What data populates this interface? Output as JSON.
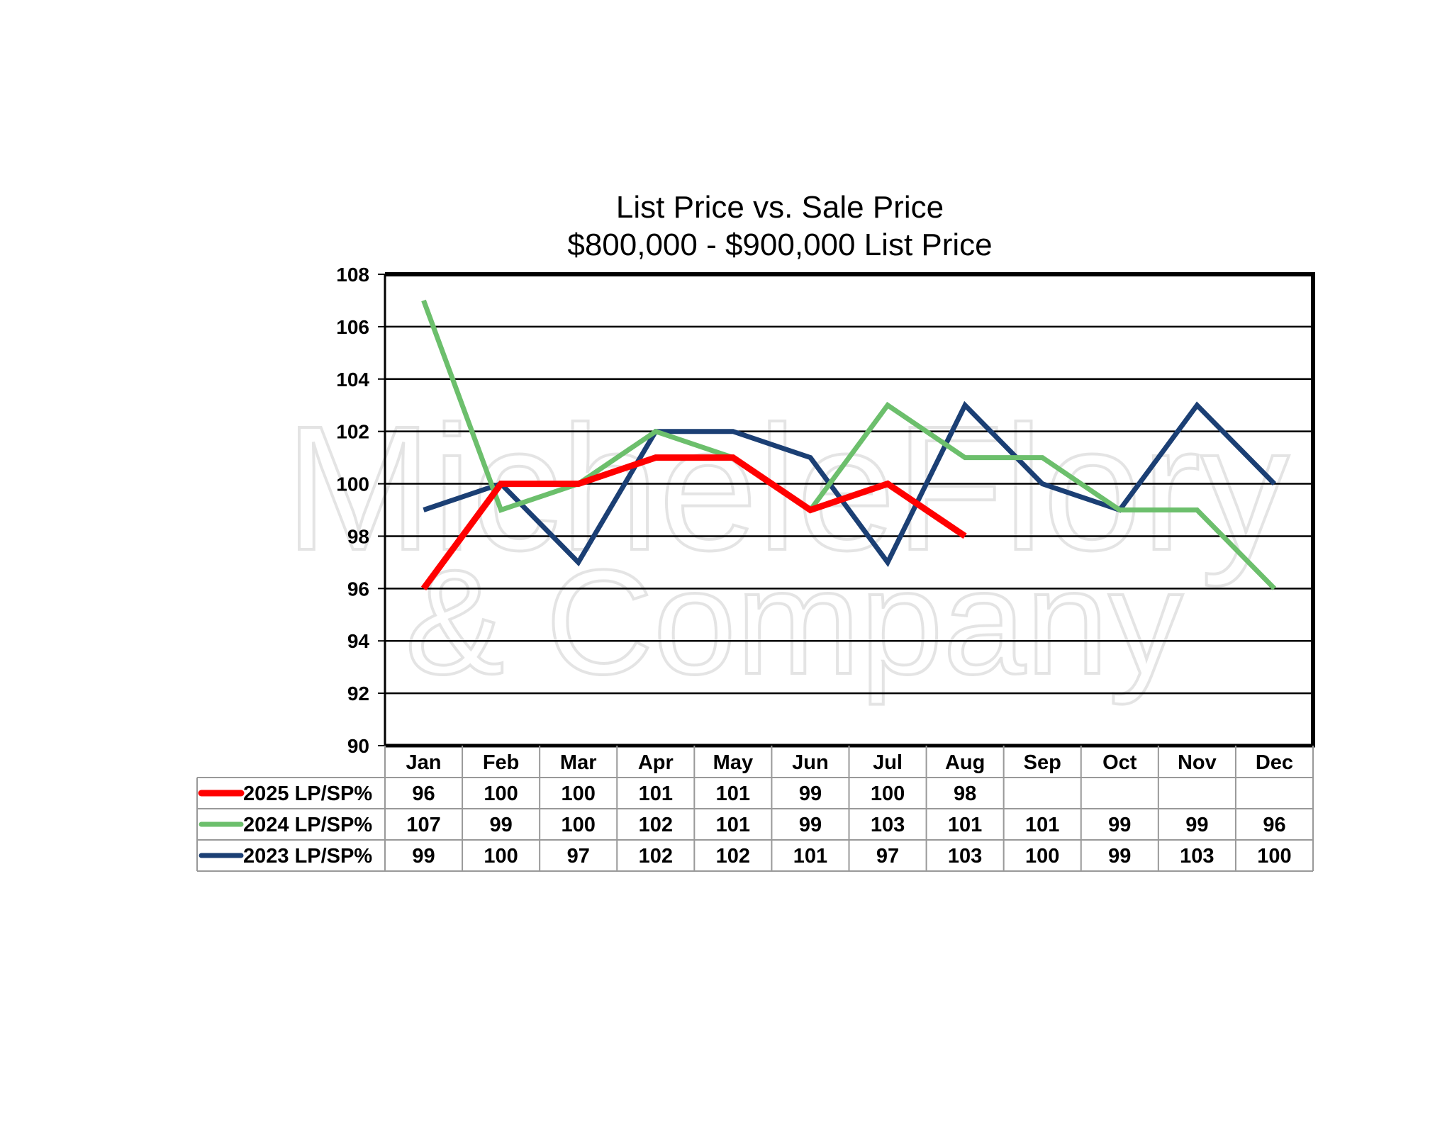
{
  "chart_data": {
    "type": "line",
    "title": "List Price vs. Sale Price",
    "subtitle": "$800,000 - $900,000 List Price",
    "xlabel": "",
    "ylabel": "",
    "ylim": [
      90,
      108
    ],
    "yticks": [
      "90",
      "92",
      "94",
      "96",
      "98",
      "100",
      "102",
      "104",
      "106",
      "108"
    ],
    "categories": [
      "Jan",
      "Feb",
      "Mar",
      "Apr",
      "May",
      "Jun",
      "Jul",
      "Aug",
      "Sep",
      "Oct",
      "Nov",
      "Dec"
    ],
    "grid": true,
    "legend": "data-table-left",
    "series": [
      {
        "name": "2025 LP/SP%",
        "color": "#ff0000",
        "values": [
          96,
          100,
          100,
          101,
          101,
          99,
          100,
          98,
          null,
          null,
          null,
          null
        ]
      },
      {
        "name": "2024 LP/SP%",
        "color": "#6cbf6c",
        "values": [
          107,
          99,
          100,
          102,
          101,
          99,
          103,
          101,
          101,
          99,
          99,
          96
        ]
      },
      {
        "name": "2023 LP/SP%",
        "color": "#1b3f74",
        "values": [
          99,
          100,
          97,
          102,
          102,
          101,
          97,
          103,
          100,
          99,
          103,
          100
        ]
      }
    ],
    "watermark": [
      "MicheleFlory",
      "& Company"
    ]
  }
}
